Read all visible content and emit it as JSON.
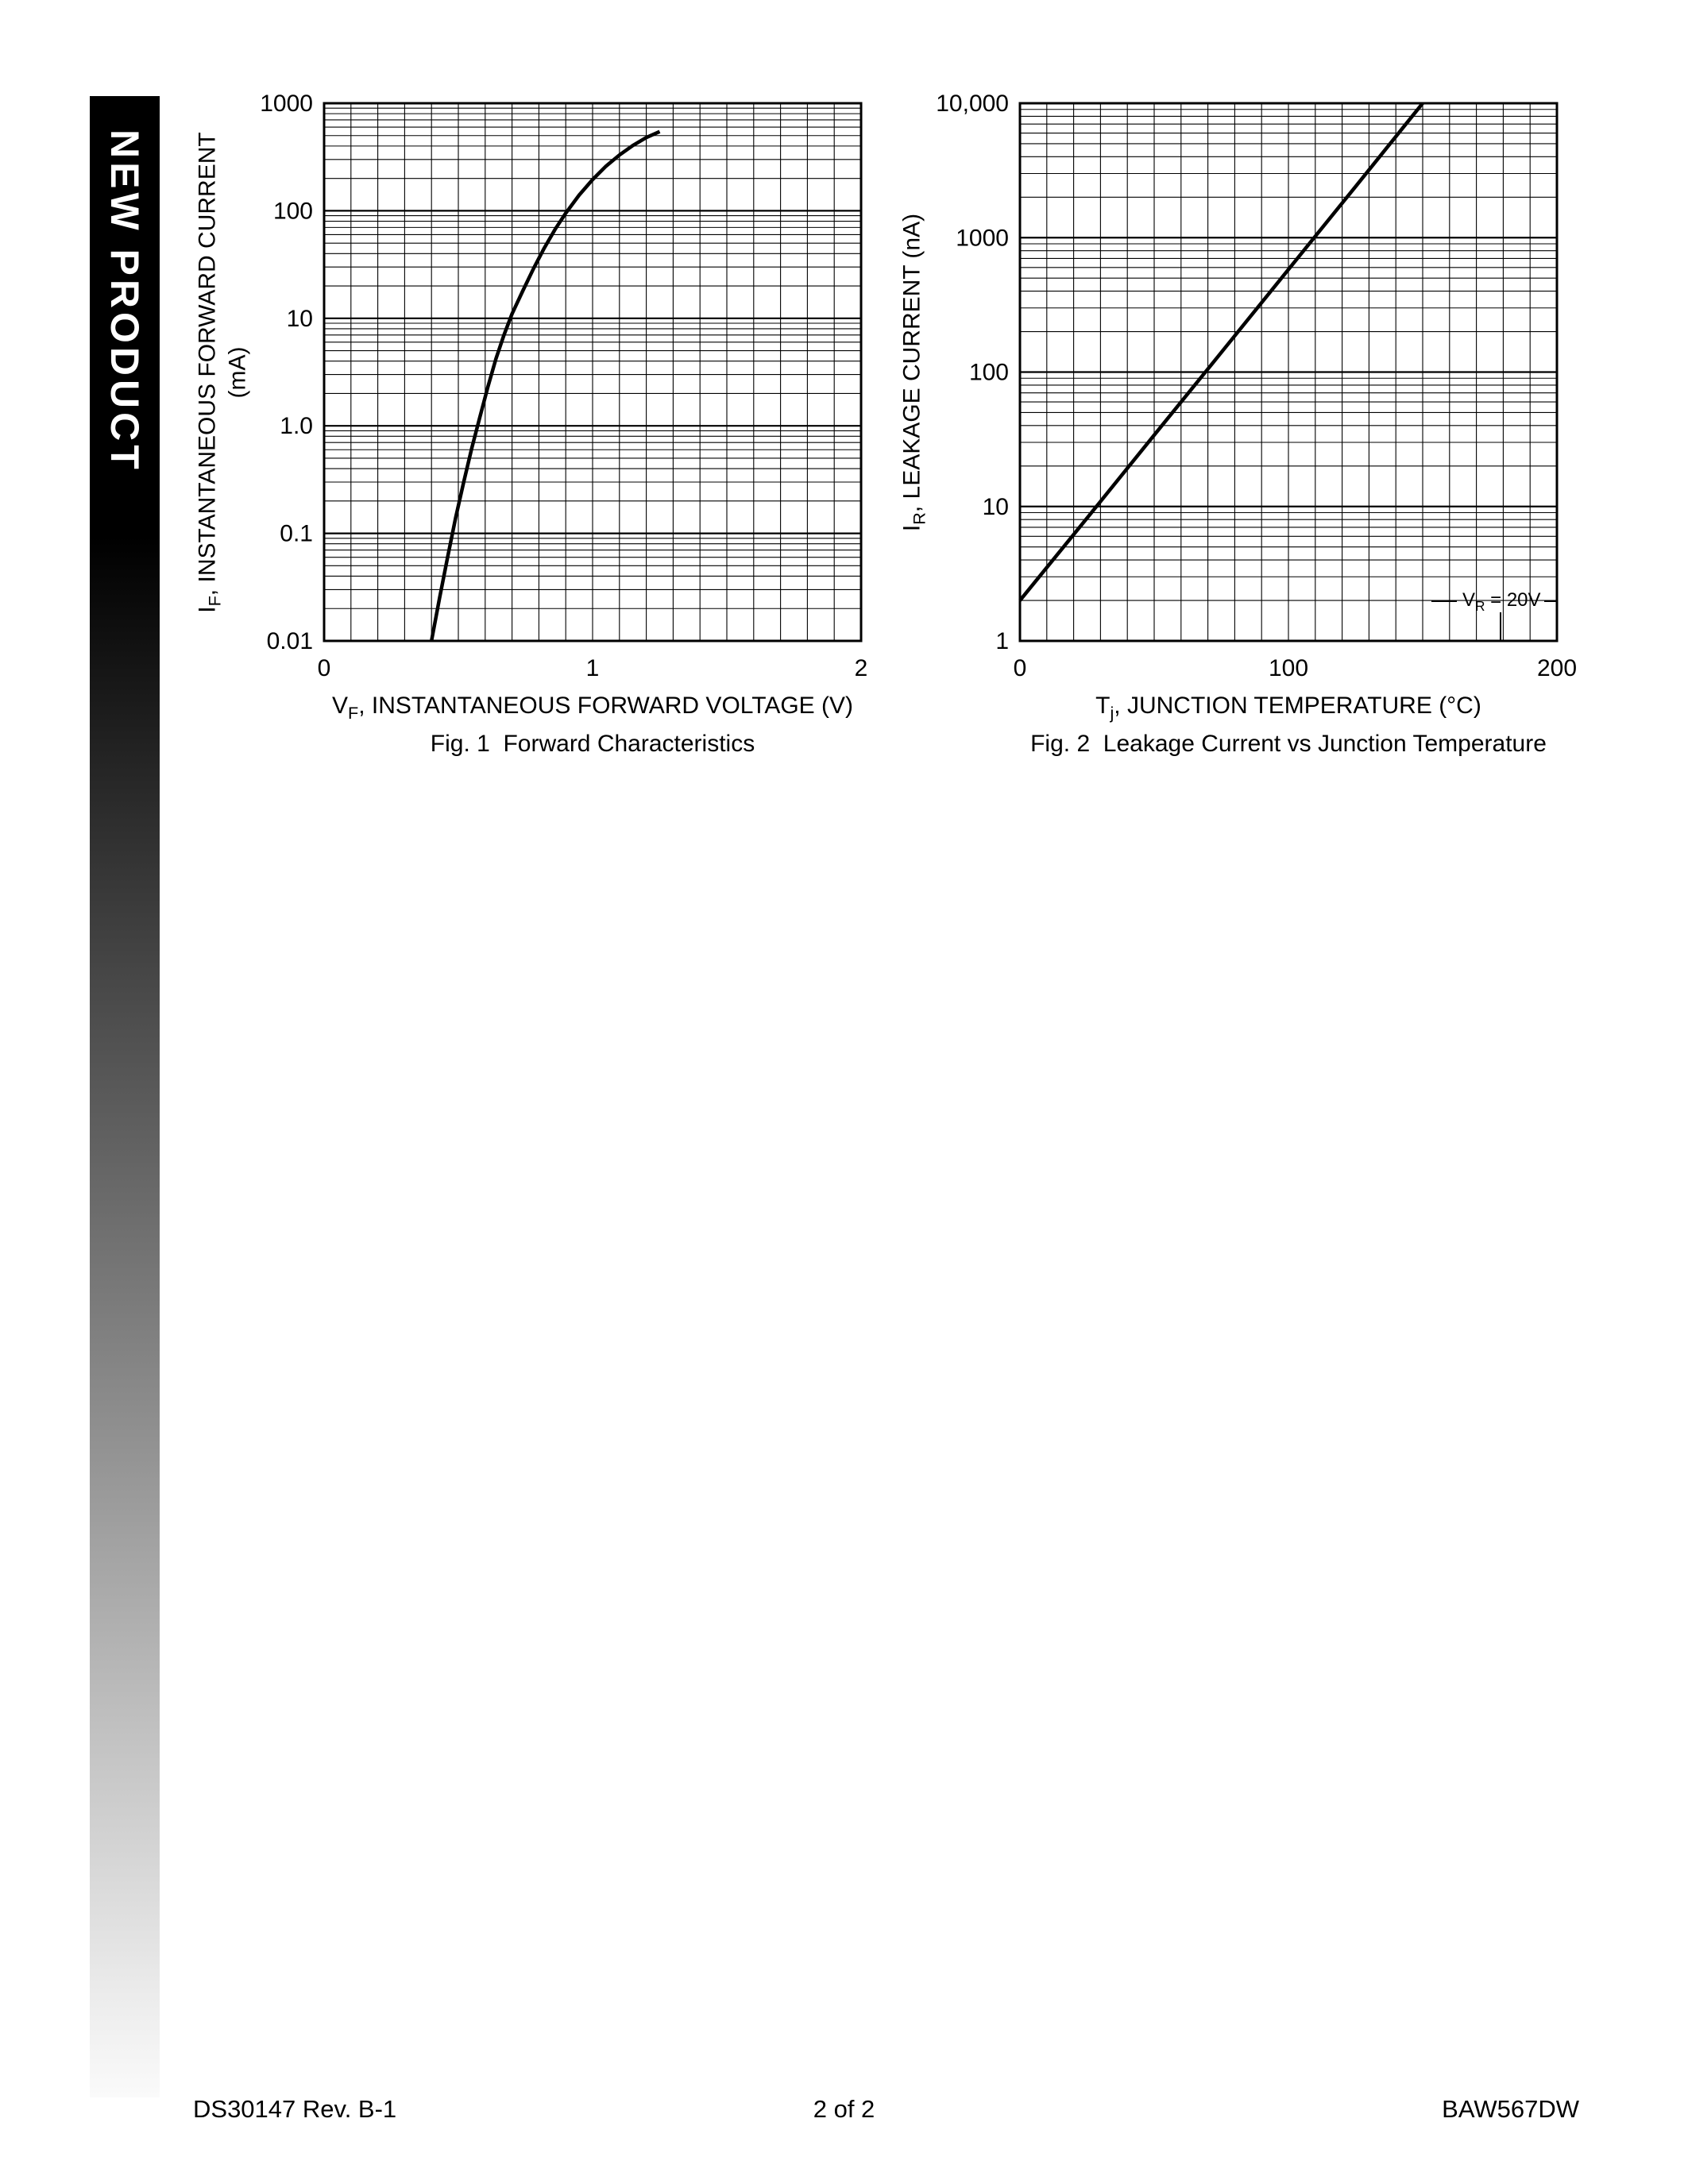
{
  "banner": {
    "text": "NEW PRODUCT"
  },
  "footer": {
    "left": "DS30147 Rev. B-1",
    "center": "2 of 2",
    "right": "BAW567DW"
  },
  "chart_data": [
    {
      "id": "fig1",
      "type": "line",
      "caption": "Fig. 1  Forward Characteristics",
      "xlabel": {
        "pre": "V",
        "sub": "F",
        "post": ", INSTANTANEOUS FORWARD VOLTAGE (V)"
      },
      "ylabel": {
        "pre": "I",
        "sub": "F",
        "post": ", INSTANTANEOUS FORWARD CURRENT (mA)"
      },
      "xscale": "linear",
      "yscale": "log",
      "xlim": [
        0,
        2
      ],
      "ylim": [
        0.01,
        1000
      ],
      "x_ticks": [
        0,
        1,
        2
      ],
      "x_tick_labels": [
        "0",
        "1",
        "2"
      ],
      "x_minor_step": 0.1,
      "y_tick_labels": [
        "1000",
        "100",
        "10",
        "1.0",
        "0.1",
        "0.01"
      ],
      "grid": "full log-linear black grid",
      "series": [
        {
          "name": "forward-current",
          "x": [
            0.4,
            0.43,
            0.46,
            0.49,
            0.52,
            0.55,
            0.58,
            0.61,
            0.64,
            0.67,
            0.7,
            0.74,
            0.78,
            0.82,
            0.86,
            0.9,
            0.95,
            1.0,
            1.05,
            1.1,
            1.15,
            1.2,
            1.25
          ],
          "y": [
            0.01,
            0.025,
            0.06,
            0.14,
            0.3,
            0.62,
            1.2,
            2.3,
            4.2,
            7.0,
            11,
            18,
            29,
            45,
            67,
            95,
            140,
            195,
            260,
            330,
            405,
            480,
            545
          ]
        }
      ]
    },
    {
      "id": "fig2",
      "type": "line",
      "caption": "Fig. 2  Leakage Current vs Junction Temperature",
      "xlabel": {
        "pre": "T",
        "sub": "j",
        "post": ", JUNCTION TEMPERATURE (°C)"
      },
      "ylabel": {
        "pre": "I",
        "sub": "R",
        "post": ", LEAKAGE CURRENT (nA)"
      },
      "xscale": "linear",
      "yscale": "log",
      "xlim": [
        0,
        200
      ],
      "ylim": [
        1,
        10000
      ],
      "x_ticks": [
        0,
        100,
        200
      ],
      "x_tick_labels": [
        "0",
        "100",
        "200"
      ],
      "x_minor_step": 10,
      "y_tick_labels": [
        "10,000",
        "1000",
        "100",
        "10",
        "1"
      ],
      "grid": "full log-linear black grid",
      "annotation": {
        "pre": "V",
        "sub": "R",
        "post": " = 20V"
      },
      "series": [
        {
          "name": "leakage-current",
          "x": [
            0,
            25,
            50,
            75,
            100,
            125,
            150
          ],
          "y": [
            2,
            8.2,
            34,
            140,
            580,
            2400,
            10000
          ]
        }
      ]
    }
  ]
}
